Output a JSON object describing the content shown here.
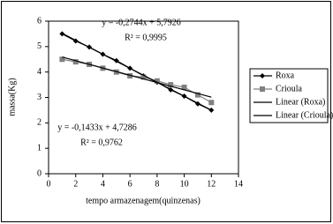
{
  "chart_data": {
    "type": "line",
    "xlabel": "tempo armazenagem(quinzenas)",
    "ylabel": "massa(Kg)",
    "xlim": [
      0,
      14
    ],
    "xticks": [
      0,
      2,
      4,
      6,
      8,
      10,
      12,
      14
    ],
    "ylim": [
      0,
      6
    ],
    "yticks": [
      0,
      1,
      2,
      3,
      4,
      5,
      6
    ],
    "grid": false,
    "legend": "right",
    "series": [
      {
        "name": "Roxa",
        "color": "#000000",
        "marker": "diamond",
        "x": [
          1,
          2,
          3,
          4,
          5,
          6,
          7,
          8,
          9,
          10,
          11,
          12
        ],
        "values": [
          5.5,
          5.22,
          4.98,
          4.7,
          4.45,
          4.15,
          3.85,
          3.6,
          3.3,
          3.05,
          2.75,
          2.5
        ]
      },
      {
        "name": "Crioula",
        "color": "#808080",
        "marker": "square",
        "x": [
          1,
          2,
          3,
          4,
          5,
          6,
          7,
          8,
          9,
          10,
          11,
          12
        ],
        "values": [
          4.5,
          4.4,
          4.3,
          4.15,
          4.0,
          3.85,
          3.8,
          3.65,
          3.5,
          3.4,
          3.1,
          2.8
        ]
      },
      {
        "name": "Linear (Roxa)",
        "color": "#000000",
        "marker": "none",
        "x": [
          1,
          12
        ],
        "values": [
          5.52,
          2.5
        ]
      },
      {
        "name": "Linear (Crioula)",
        "color": "#000000",
        "marker": "none",
        "x": [
          1,
          12
        ],
        "values": [
          4.59,
          3.01
        ]
      }
    ],
    "annotations": [
      "y = -0,2744x + 5,7926",
      "R² = 0,9995",
      "y = -0,1433x + 4,7286",
      "R² = 0,9762"
    ]
  }
}
